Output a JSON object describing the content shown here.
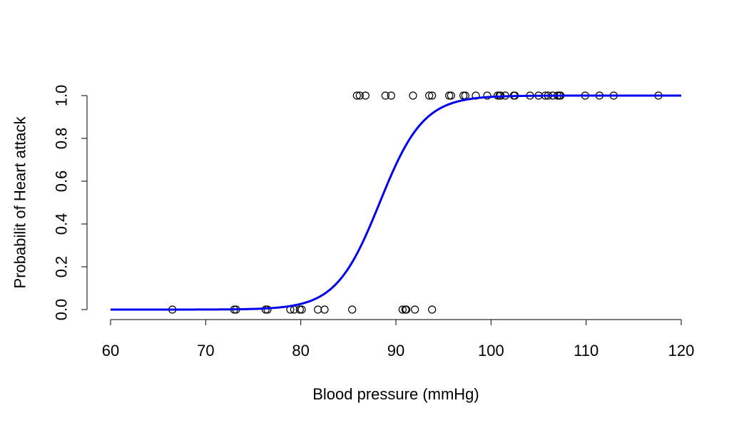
{
  "chart_data": {
    "type": "scatter",
    "title": "",
    "xlabel": "Blood pressure (mmHg)",
    "ylabel": "Probabilit of Heart attack",
    "xlim": [
      60,
      120
    ],
    "ylim": [
      0,
      1
    ],
    "x_ticks": [
      60,
      70,
      80,
      90,
      100,
      110,
      120
    ],
    "y_ticks": [
      0.0,
      0.2,
      0.4,
      0.6,
      0.8,
      1.0
    ],
    "x_tick_labels": [
      "60",
      "70",
      "80",
      "90",
      "100",
      "110",
      "120"
    ],
    "y_tick_labels": [
      "0.0",
      "0.2",
      "0.4",
      "0.6",
      "0.8",
      "1.0"
    ],
    "grid": false,
    "points_y0": [
      66.5,
      73.0,
      73.2,
      76.3,
      76.5,
      78.9,
      79.3,
      79.9,
      80.1,
      81.8,
      82.5,
      85.4,
      90.7,
      91.0,
      91.1,
      92.0,
      93.8
    ],
    "points_y1": [
      85.9,
      86.2,
      86.8,
      88.9,
      89.5,
      91.8,
      93.5,
      93.8,
      95.6,
      95.8,
      97.1,
      97.3,
      98.4,
      99.6,
      100.7,
      100.9,
      101.0,
      101.5,
      102.4,
      102.5,
      104.1,
      105.0,
      105.7,
      106.0,
      106.5,
      107.0,
      107.2,
      107.3,
      109.9,
      111.4,
      112.9,
      117.6
    ],
    "curve": {
      "type": "logistic",
      "midpoint": 88.3,
      "scale": 2.3,
      "x_range": [
        60,
        120
      ],
      "color": "#0000ee"
    },
    "point_color": "#000000"
  }
}
